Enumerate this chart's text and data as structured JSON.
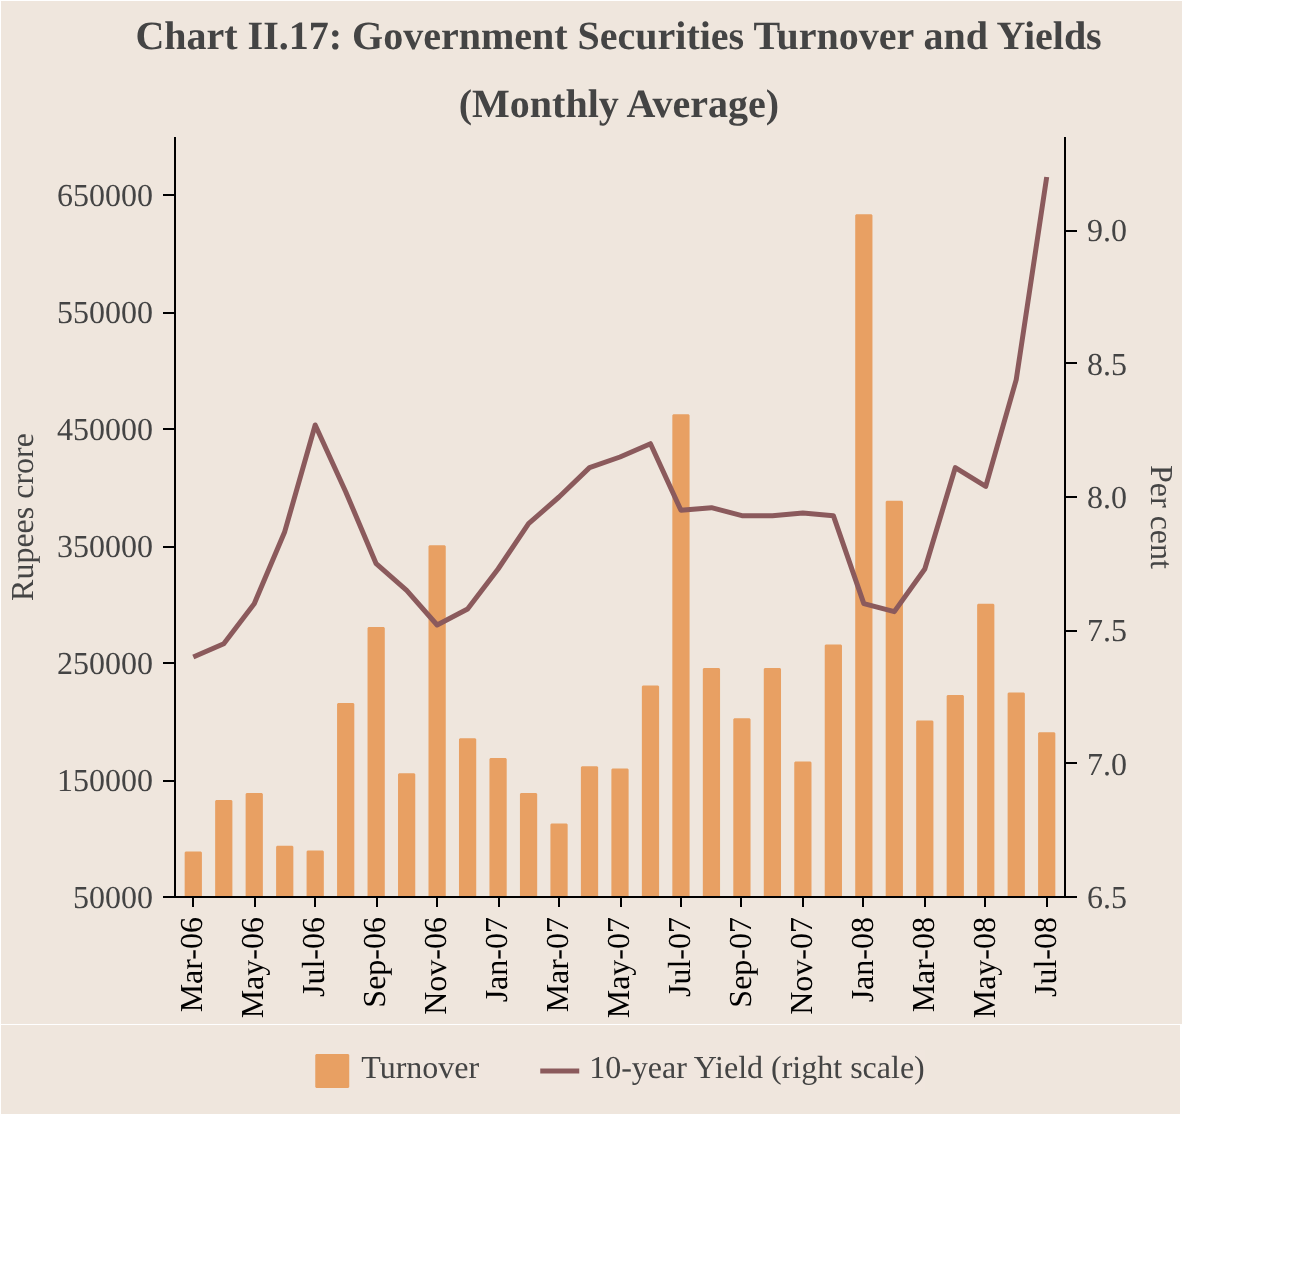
{
  "chart_data": {
    "type": "bar",
    "title": "Chart II.17: Government Securities Turnover and Yields",
    "subtitle": "(Monthly Average)",
    "ylabel": "Rupees crore",
    "y2label": "Per cent",
    "categories": [
      "Mar-06",
      null,
      "May-06",
      null,
      "Jul-06",
      null,
      "Sep-06",
      null,
      "Nov-06",
      null,
      "Jan-07",
      null,
      "Mar-07",
      null,
      "May-07",
      null,
      "Jul-07",
      null,
      "Sep-07",
      null,
      "Nov-07",
      null,
      "Jan-08",
      null,
      "Mar-08",
      null,
      "May-08",
      null,
      "Jul-08"
    ],
    "series": [
      {
        "name": "Turnover",
        "type": "bar",
        "color": "#e8a063",
        "values": [
          88000,
          132000,
          138000,
          93000,
          89000,
          215000,
          280000,
          155000,
          350000,
          185000,
          168000,
          138000,
          112000,
          161000,
          159000,
          230000,
          462000,
          245000,
          202000,
          245000,
          165000,
          265000,
          633000,
          388000,
          200000,
          222000,
          300000,
          224000,
          190000
        ]
      },
      {
        "name": "10-year Yield (right scale)",
        "type": "line",
        "axis": "y2",
        "color": "#8b5a5c",
        "values": [
          7.4,
          7.45,
          7.6,
          7.87,
          8.27,
          8.02,
          7.75,
          7.65,
          7.52,
          7.58,
          7.73,
          7.9,
          8.0,
          8.11,
          8.15,
          8.2,
          7.95,
          7.96,
          7.93,
          7.93,
          7.94,
          7.93,
          7.6,
          7.57,
          7.73,
          8.11,
          8.04,
          8.44,
          9.2
        ]
      }
    ],
    "ylim": [
      50000,
      700000
    ],
    "yticks": [
      50000,
      150000,
      250000,
      350000,
      450000,
      550000,
      650000
    ],
    "y2lim": [
      6.5,
      9.35
    ],
    "y2ticks": [
      6.5,
      {
        "value": 7,
        "label": "7.0"
      },
      7.5,
      {
        "value": 8,
        "label": "8.0"
      },
      8.5,
      {
        "value": 9,
        "label": "9.0"
      }
    ],
    "grid": false,
    "legend": "bottom"
  }
}
